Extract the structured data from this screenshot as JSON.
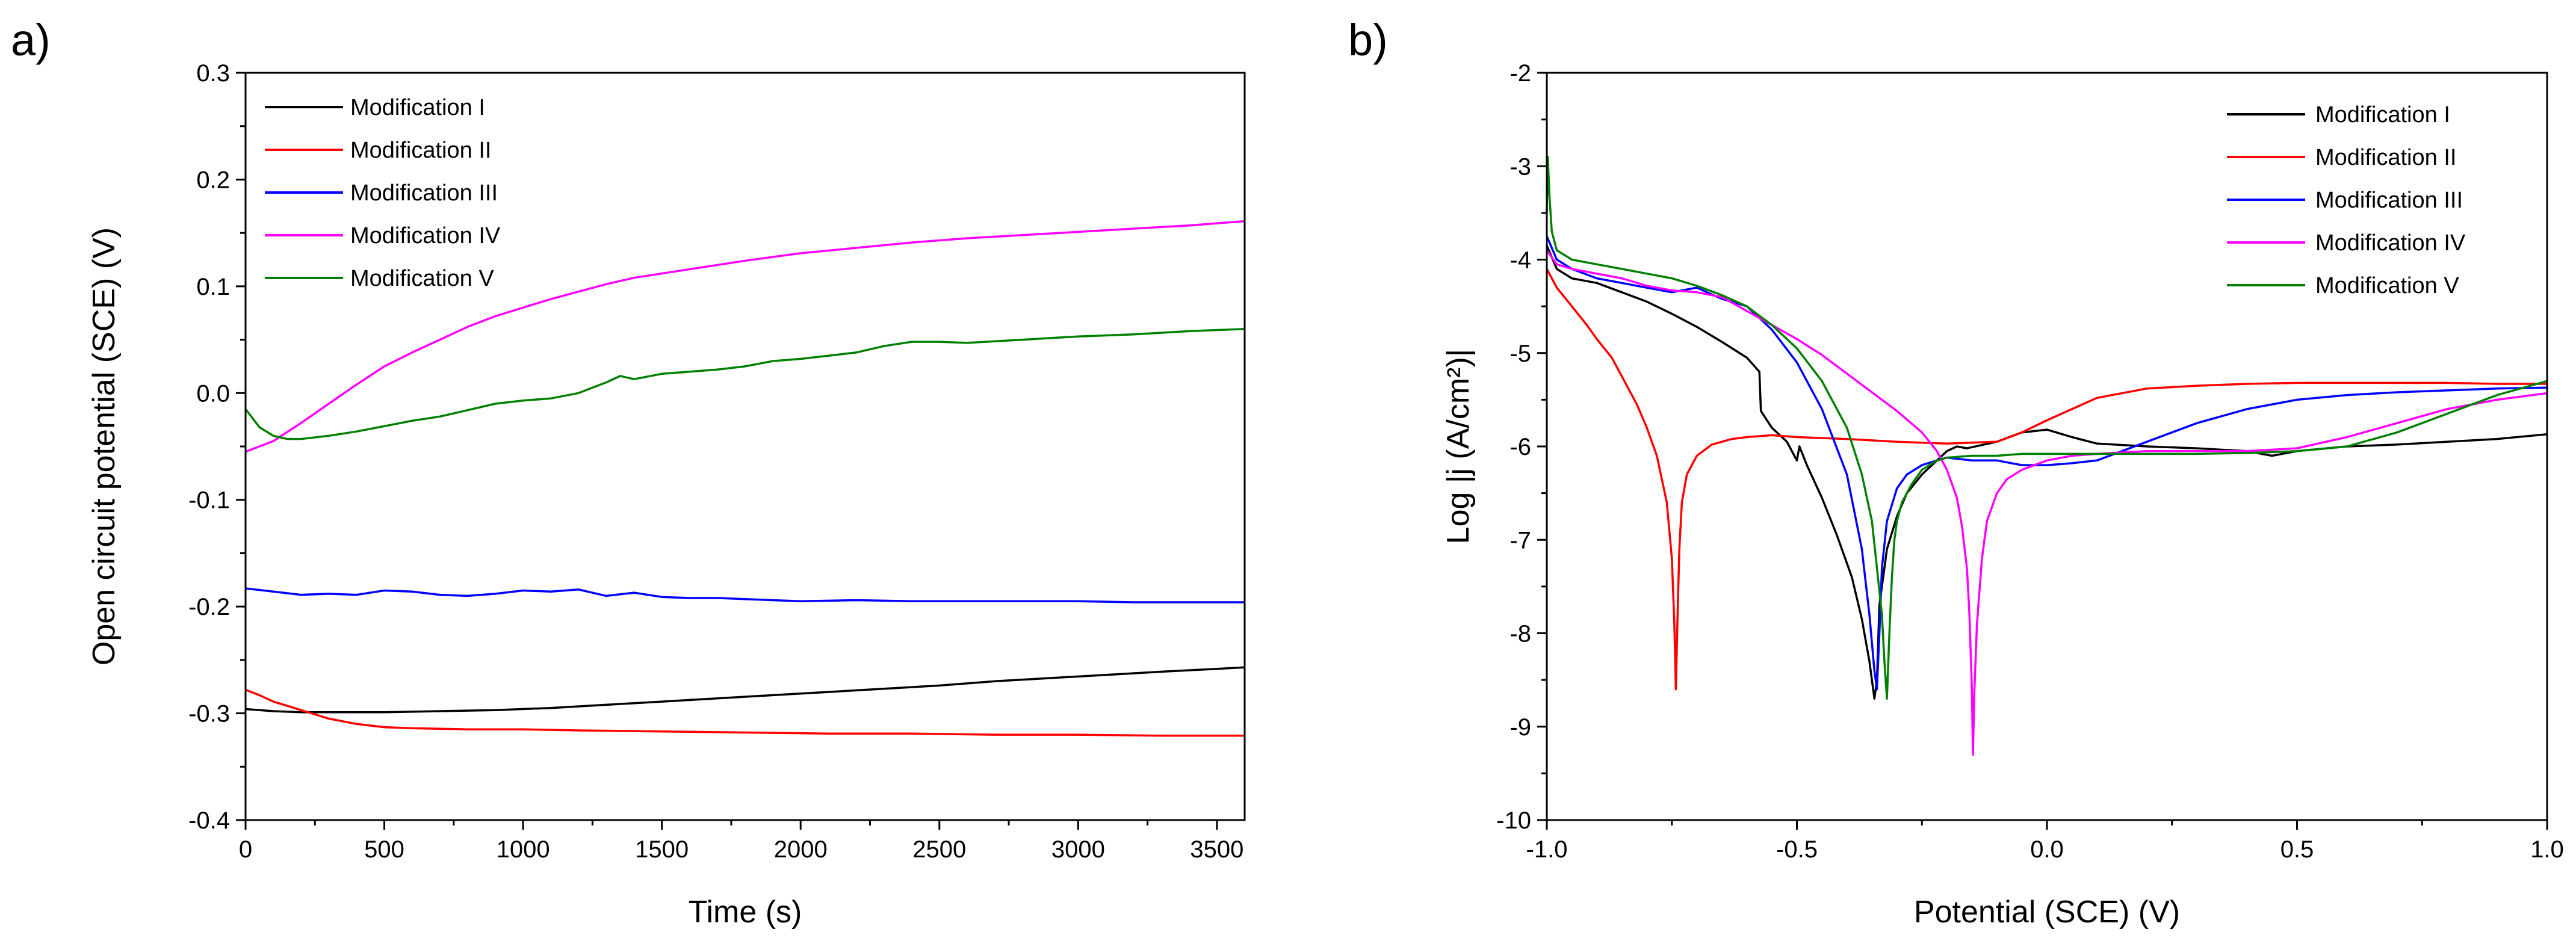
{
  "chart_data": [
    {
      "type": "line",
      "panel_label": "a)",
      "xlabel": "Time (s)",
      "ylabel": "Open circuit potential (SCE) (V)",
      "xlim": [
        0,
        3600
      ],
      "ylim": [
        -0.4,
        0.3
      ],
      "xticks": [
        "0",
        "500",
        "1000",
        "1500",
        "2000",
        "2500",
        "3000",
        "3500"
      ],
      "yticks": [
        "-0.4",
        "-0.3",
        "-0.2",
        "-0.1",
        "0.0",
        "0.1",
        "0.2",
        "0.3"
      ],
      "legend_position": "top-left",
      "series": [
        {
          "name": "Modification I",
          "color": "#000000",
          "x": [
            0,
            50,
            100,
            200,
            300,
            400,
            500,
            700,
            900,
            1100,
            1300,
            1500,
            1700,
            1900,
            2100,
            2300,
            2500,
            2700,
            2900,
            3100,
            3300,
            3600
          ],
          "y": [
            -0.296,
            -0.297,
            -0.298,
            -0.299,
            -0.299,
            -0.299,
            -0.299,
            -0.298,
            -0.297,
            -0.295,
            -0.292,
            -0.289,
            -0.286,
            -0.283,
            -0.28,
            -0.277,
            -0.274,
            -0.27,
            -0.267,
            -0.264,
            -0.261,
            -0.257
          ]
        },
        {
          "name": "Modification II",
          "color": "#ff0000",
          "x": [
            0,
            50,
            100,
            200,
            300,
            400,
            500,
            600,
            800,
            1000,
            1200,
            1500,
            1800,
            2100,
            2400,
            2700,
            3000,
            3300,
            3600
          ],
          "y": [
            -0.278,
            -0.283,
            -0.289,
            -0.297,
            -0.305,
            -0.31,
            -0.313,
            -0.314,
            -0.315,
            -0.315,
            -0.316,
            -0.317,
            -0.318,
            -0.319,
            -0.319,
            -0.32,
            -0.32,
            -0.321,
            -0.321
          ]
        },
        {
          "name": "Modification III",
          "color": "#0000ff",
          "x": [
            0,
            100,
            200,
            300,
            400,
            500,
            600,
            700,
            800,
            900,
            1000,
            1100,
            1200,
            1300,
            1400,
            1500,
            1600,
            1700,
            1800,
            2000,
            2200,
            2400,
            2600,
            2800,
            3000,
            3200,
            3400,
            3600
          ],
          "y": [
            -0.183,
            -0.186,
            -0.189,
            -0.188,
            -0.189,
            -0.185,
            -0.186,
            -0.189,
            -0.19,
            -0.188,
            -0.185,
            -0.186,
            -0.184,
            -0.19,
            -0.187,
            -0.191,
            -0.192,
            -0.192,
            -0.193,
            -0.195,
            -0.194,
            -0.195,
            -0.195,
            -0.195,
            -0.195,
            -0.196,
            -0.196,
            -0.196
          ]
        },
        {
          "name": "Modification IV",
          "color": "#ff00ff",
          "x": [
            0,
            100,
            200,
            300,
            400,
            500,
            600,
            700,
            800,
            900,
            1000,
            1100,
            1200,
            1300,
            1400,
            1600,
            1800,
            2000,
            2200,
            2400,
            2600,
            2800,
            3000,
            3200,
            3400,
            3600
          ],
          "y": [
            -0.055,
            -0.045,
            -0.028,
            -0.01,
            0.008,
            0.025,
            0.038,
            0.05,
            0.062,
            0.072,
            0.08,
            0.088,
            0.095,
            0.102,
            0.108,
            0.116,
            0.124,
            0.131,
            0.136,
            0.141,
            0.145,
            0.148,
            0.151,
            0.154,
            0.157,
            0.161
          ]
        },
        {
          "name": "Modification V",
          "color": "#008000",
          "x": [
            0,
            50,
            100,
            150,
            200,
            300,
            400,
            500,
            600,
            700,
            800,
            900,
            1000,
            1100,
            1200,
            1300,
            1350,
            1400,
            1500,
            1600,
            1700,
            1800,
            1900,
            2000,
            2100,
            2200,
            2300,
            2400,
            2500,
            2600,
            2800,
            3000,
            3200,
            3400,
            3600
          ],
          "y": [
            -0.015,
            -0.032,
            -0.04,
            -0.043,
            -0.043,
            -0.04,
            -0.036,
            -0.031,
            -0.026,
            -0.022,
            -0.016,
            -0.01,
            -0.007,
            -0.005,
            0.0,
            0.01,
            0.016,
            0.013,
            0.018,
            0.02,
            0.022,
            0.025,
            0.03,
            0.032,
            0.035,
            0.038,
            0.044,
            0.048,
            0.048,
            0.047,
            0.05,
            0.053,
            0.055,
            0.058,
            0.06
          ]
        }
      ]
    },
    {
      "type": "line",
      "panel_label": "b)",
      "xlabel": "Potential (SCE) (V)",
      "ylabel": "Log |j (A/cm²)|",
      "xlim": [
        -1.0,
        1.0
      ],
      "ylim": [
        -10,
        -2
      ],
      "xticks": [
        "-1.0",
        "-0.5",
        "0.0",
        "0.5",
        "1.0"
      ],
      "yticks": [
        "-10",
        "-9",
        "-8",
        "-7",
        "-6",
        "-5",
        "-4",
        "-3",
        "-2"
      ],
      "legend_position": "top-right",
      "series": [
        {
          "name": "Modification I",
          "color": "#000000",
          "x": [
            -1.0,
            -0.98,
            -0.95,
            -0.9,
            -0.85,
            -0.8,
            -0.75,
            -0.7,
            -0.65,
            -0.6,
            -0.575,
            -0.572,
            -0.55,
            -0.52,
            -0.5,
            -0.495,
            -0.48,
            -0.45,
            -0.42,
            -0.39,
            -0.37,
            -0.355,
            -0.345,
            -0.34,
            -0.335,
            -0.32,
            -0.3,
            -0.28,
            -0.25,
            -0.22,
            -0.2,
            -0.18,
            -0.16,
            -0.1,
            -0.05,
            0.0,
            0.05,
            0.1,
            0.2,
            0.3,
            0.4,
            0.45,
            0.5,
            0.6,
            0.7,
            0.8,
            0.9,
            1.0
          ],
          "y": [
            -3.85,
            -4.1,
            -4.2,
            -4.25,
            -4.35,
            -4.45,
            -4.58,
            -4.72,
            -4.88,
            -5.05,
            -5.2,
            -5.62,
            -5.8,
            -5.95,
            -6.15,
            -6.0,
            -6.2,
            -6.55,
            -6.95,
            -7.4,
            -7.85,
            -8.3,
            -8.7,
            -8.5,
            -7.7,
            -7.1,
            -6.75,
            -6.5,
            -6.3,
            -6.15,
            -6.05,
            -6.0,
            -6.02,
            -5.95,
            -5.85,
            -5.82,
            -5.9,
            -5.97,
            -6.0,
            -6.02,
            -6.05,
            -6.1,
            -6.05,
            -6.0,
            -5.98,
            -5.95,
            -5.92,
            -5.87
          ]
        },
        {
          "name": "Modification II",
          "color": "#ff0000",
          "x": [
            -1.0,
            -0.98,
            -0.95,
            -0.92,
            -0.9,
            -0.87,
            -0.85,
            -0.82,
            -0.8,
            -0.78,
            -0.76,
            -0.75,
            -0.745,
            -0.742,
            -0.738,
            -0.735,
            -0.73,
            -0.72,
            -0.7,
            -0.67,
            -0.63,
            -0.6,
            -0.55,
            -0.5,
            -0.4,
            -0.3,
            -0.2,
            -0.1,
            -0.05,
            0.0,
            0.05,
            0.1,
            0.2,
            0.3,
            0.4,
            0.5,
            0.6,
            0.7,
            0.8,
            0.9,
            1.0
          ],
          "y": [
            -4.1,
            -4.3,
            -4.5,
            -4.7,
            -4.85,
            -5.05,
            -5.25,
            -5.55,
            -5.8,
            -6.1,
            -6.6,
            -7.2,
            -7.9,
            -8.6,
            -7.7,
            -7.1,
            -6.6,
            -6.3,
            -6.1,
            -5.98,
            -5.92,
            -5.9,
            -5.88,
            -5.9,
            -5.92,
            -5.95,
            -5.97,
            -5.95,
            -5.85,
            -5.72,
            -5.6,
            -5.48,
            -5.38,
            -5.35,
            -5.33,
            -5.32,
            -5.32,
            -5.32,
            -5.32,
            -5.33,
            -5.33
          ]
        },
        {
          "name": "Modification III",
          "color": "#0000ff",
          "x": [
            -1.0,
            -0.98,
            -0.95,
            -0.9,
            -0.85,
            -0.8,
            -0.75,
            -0.7,
            -0.65,
            -0.6,
            -0.55,
            -0.5,
            -0.45,
            -0.4,
            -0.37,
            -0.355,
            -0.345,
            -0.34,
            -0.335,
            -0.33,
            -0.32,
            -0.3,
            -0.28,
            -0.25,
            -0.22,
            -0.2,
            -0.15,
            -0.1,
            -0.05,
            0.0,
            0.05,
            0.1,
            0.15,
            0.2,
            0.3,
            0.4,
            0.5,
            0.6,
            0.7,
            0.8,
            0.9,
            1.0
          ],
          "y": [
            -3.75,
            -4.0,
            -4.1,
            -4.2,
            -4.25,
            -4.3,
            -4.35,
            -4.3,
            -4.42,
            -4.5,
            -4.75,
            -5.1,
            -5.6,
            -6.3,
            -7.1,
            -7.8,
            -8.4,
            -8.6,
            -8.0,
            -7.3,
            -6.8,
            -6.45,
            -6.3,
            -6.2,
            -6.15,
            -6.12,
            -6.15,
            -6.15,
            -6.2,
            -6.2,
            -6.18,
            -6.15,
            -6.05,
            -5.95,
            -5.75,
            -5.6,
            -5.5,
            -5.45,
            -5.42,
            -5.4,
            -5.38,
            -5.37
          ]
        },
        {
          "name": "Modification IV",
          "color": "#ff00ff",
          "x": [
            -1.0,
            -0.98,
            -0.95,
            -0.9,
            -0.85,
            -0.8,
            -0.75,
            -0.7,
            -0.65,
            -0.6,
            -0.55,
            -0.5,
            -0.45,
            -0.4,
            -0.35,
            -0.3,
            -0.25,
            -0.22,
            -0.2,
            -0.18,
            -0.17,
            -0.16,
            -0.155,
            -0.15,
            -0.148,
            -0.145,
            -0.14,
            -0.13,
            -0.12,
            -0.1,
            -0.08,
            -0.05,
            0.0,
            0.05,
            0.1,
            0.2,
            0.3,
            0.4,
            0.5,
            0.6,
            0.7,
            0.8,
            0.9,
            1.0
          ],
          "y": [
            -3.9,
            -4.05,
            -4.1,
            -4.15,
            -4.2,
            -4.28,
            -4.33,
            -4.35,
            -4.4,
            -4.55,
            -4.7,
            -4.85,
            -5.02,
            -5.22,
            -5.42,
            -5.62,
            -5.85,
            -6.05,
            -6.25,
            -6.55,
            -6.85,
            -7.3,
            -7.8,
            -8.6,
            -9.3,
            -8.6,
            -7.9,
            -7.2,
            -6.8,
            -6.5,
            -6.35,
            -6.25,
            -6.15,
            -6.1,
            -6.08,
            -6.05,
            -6.05,
            -6.05,
            -6.02,
            -5.9,
            -5.75,
            -5.6,
            -5.5,
            -5.43
          ]
        },
        {
          "name": "Modification V",
          "color": "#008000",
          "x": [
            -1.0,
            -0.998,
            -0.995,
            -0.99,
            -0.98,
            -0.95,
            -0.9,
            -0.85,
            -0.8,
            -0.75,
            -0.7,
            -0.65,
            -0.6,
            -0.55,
            -0.5,
            -0.45,
            -0.4,
            -0.37,
            -0.35,
            -0.34,
            -0.33,
            -0.325,
            -0.32,
            -0.315,
            -0.31,
            -0.305,
            -0.3,
            -0.29,
            -0.27,
            -0.25,
            -0.22,
            -0.2,
            -0.15,
            -0.1,
            -0.05,
            0.0,
            0.1,
            0.2,
            0.3,
            0.4,
            0.5,
            0.6,
            0.7,
            0.8,
            0.9,
            1.0
          ],
          "y": [
            -3.5,
            -2.9,
            -3.3,
            -3.7,
            -3.9,
            -4.0,
            -4.05,
            -4.1,
            -4.15,
            -4.2,
            -4.28,
            -4.38,
            -4.5,
            -4.7,
            -4.95,
            -5.3,
            -5.8,
            -6.3,
            -6.8,
            -7.3,
            -7.8,
            -8.3,
            -8.7,
            -8.0,
            -7.4,
            -7.0,
            -6.8,
            -6.6,
            -6.4,
            -6.25,
            -6.15,
            -6.12,
            -6.1,
            -6.1,
            -6.08,
            -6.08,
            -6.08,
            -6.08,
            -6.08,
            -6.07,
            -6.05,
            -6.0,
            -5.85,
            -5.65,
            -5.45,
            -5.3
          ]
        }
      ]
    }
  ]
}
